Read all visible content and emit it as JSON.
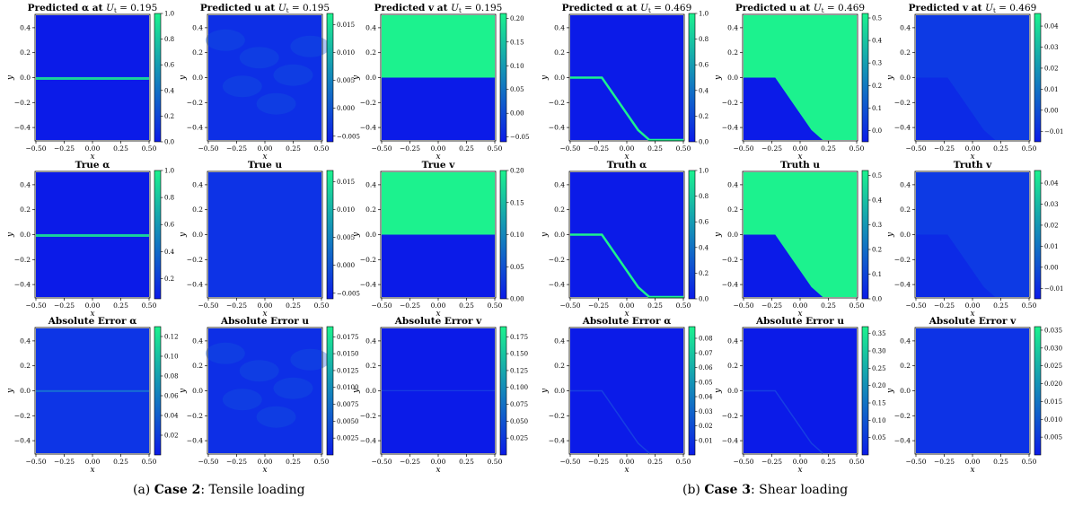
{
  "captions": [
    {
      "label": "(a)",
      "case": "Case 2",
      "text": ": Tensile loading"
    },
    {
      "label": "(b)",
      "case": "Case 3",
      "text": ": Shear loading"
    }
  ],
  "chart_data": [
    {
      "panel": "a",
      "row": 0,
      "col": 0,
      "type": "heatmap",
      "title": "Predicted α at U_t = 0.195",
      "xlabel": "x",
      "ylabel": "y",
      "xlim": [
        -0.5,
        0.5
      ],
      "ylim": [
        -0.5,
        0.5
      ],
      "xticks": [
        "−0.50",
        "−0.25",
        "0.00",
        "0.25",
        "0.50"
      ],
      "yticks": [
        "0.4",
        "0.2",
        "0.0",
        "−0.2",
        "−0.4"
      ],
      "colorbar": {
        "ticks": [
          "1.0",
          "0.8",
          "0.6",
          "0.4",
          "0.2",
          "0.0"
        ],
        "range": [
          0,
          1
        ]
      },
      "field": "tensile_crack_alpha",
      "color_low": "#0b1be8",
      "color_high": "#1cf28e"
    },
    {
      "panel": "a",
      "row": 0,
      "col": 1,
      "type": "heatmap",
      "title": "Predicted u at U_t = 0.195",
      "xlabel": "x",
      "ylabel": "y",
      "xlim": [
        -0.5,
        0.5
      ],
      "ylim": [
        -0.5,
        0.5
      ],
      "xticks": [
        "−0.50",
        "−0.25",
        "0.00",
        "0.25",
        "0.50"
      ],
      "yticks": [
        "0.4",
        "0.2",
        "0.0",
        "−0.2",
        "−0.4"
      ],
      "colorbar": {
        "ticks": [
          "0.015",
          "0.010",
          "0.005",
          "0.000",
          "−0.005"
        ],
        "range": [
          -0.006,
          0.017
        ]
      },
      "field": "noisy_u",
      "color_low": "#0b1be8",
      "color_high": "#1cf28e"
    },
    {
      "panel": "a",
      "row": 0,
      "col": 2,
      "type": "heatmap",
      "title": "Predicted v at U_t = 0.195",
      "xlabel": "x",
      "ylabel": "y",
      "xlim": [
        -0.5,
        0.5
      ],
      "ylim": [
        -0.5,
        0.5
      ],
      "xticks": [
        "−0.50",
        "−0.25",
        "0.00",
        "0.25",
        "0.50"
      ],
      "yticks": [
        "0.4",
        "0.2",
        "0.0",
        "−0.2",
        "−0.4"
      ],
      "colorbar": {
        "ticks": [
          "0.20",
          "0.15",
          "0.10",
          "0.05",
          "0.00",
          "−0.05"
        ],
        "range": [
          -0.06,
          0.21
        ]
      },
      "field": "tensile_split_v",
      "color_low": "#0b1be8",
      "color_high": "#1cf28e"
    },
    {
      "panel": "a",
      "row": 1,
      "col": 0,
      "type": "heatmap",
      "title": "True α",
      "xlabel": "x",
      "ylabel": "y",
      "xlim": [
        -0.5,
        0.5
      ],
      "ylim": [
        -0.5,
        0.5
      ],
      "xticks": [
        "−0.50",
        "−0.25",
        "0.00",
        "0.25",
        "0.50"
      ],
      "yticks": [
        "0.4",
        "0.2",
        "0.0",
        "−0.2",
        "−0.4"
      ],
      "colorbar": {
        "ticks": [
          "1.0",
          "0.8",
          "0.6",
          "0.4",
          "0.2"
        ],
        "range": [
          0.05,
          1
        ]
      },
      "field": "tensile_crack_alpha",
      "color_low": "#0b1be8",
      "color_high": "#1cf28e"
    },
    {
      "panel": "a",
      "row": 1,
      "col": 1,
      "type": "heatmap",
      "title": "True u",
      "xlabel": "x",
      "ylabel": "y",
      "xlim": [
        -0.5,
        0.5
      ],
      "ylim": [
        -0.5,
        0.5
      ],
      "xticks": [
        "−0.50",
        "−0.25",
        "0.00",
        "0.25",
        "0.50"
      ],
      "yticks": [
        "0.4",
        "0.2",
        "0.0",
        "−0.2",
        "−0.4"
      ],
      "colorbar": {
        "ticks": [
          "0.015",
          "0.010",
          "0.005",
          "0.000",
          "−0.005"
        ],
        "range": [
          -0.006,
          0.017
        ]
      },
      "field": "uniform_low",
      "color_low": "#0b1be8",
      "color_high": "#1cf28e"
    },
    {
      "panel": "a",
      "row": 1,
      "col": 2,
      "type": "heatmap",
      "title": "True v",
      "xlabel": "x",
      "ylabel": "y",
      "xlim": [
        -0.5,
        0.5
      ],
      "ylim": [
        -0.5,
        0.5
      ],
      "xticks": [
        "−0.50",
        "−0.25",
        "0.00",
        "0.25",
        "0.50"
      ],
      "yticks": [
        "0.4",
        "0.2",
        "0.0",
        "−0.2",
        "−0.4"
      ],
      "colorbar": {
        "ticks": [
          "0.20",
          "0.15",
          "0.10",
          "0.05",
          "0.00"
        ],
        "range": [
          0,
          0.2
        ]
      },
      "field": "tensile_split_v",
      "color_low": "#0b1be8",
      "color_high": "#1cf28e"
    },
    {
      "panel": "a",
      "row": 2,
      "col": 0,
      "type": "heatmap",
      "title": "Absolute Error α",
      "xlabel": "x",
      "ylabel": "y",
      "xlim": [
        -0.5,
        0.5
      ],
      "ylim": [
        -0.5,
        0.5
      ],
      "xticks": [
        "−0.50",
        "−0.25",
        "0.00",
        "0.25",
        "0.50"
      ],
      "yticks": [
        "0.4",
        "0.2",
        "0.0",
        "−0.2",
        "−0.4"
      ],
      "colorbar": {
        "ticks": [
          "0.12",
          "0.10",
          "0.08",
          "0.06",
          "0.04",
          "0.02"
        ],
        "range": [
          0,
          0.13
        ]
      },
      "field": "error_crack",
      "color_low": "#0b1be8",
      "color_high": "#1cf28e"
    },
    {
      "panel": "a",
      "row": 2,
      "col": 1,
      "type": "heatmap",
      "title": "Absolute Error u",
      "xlabel": "x",
      "ylabel": "y",
      "xlim": [
        -0.5,
        0.5
      ],
      "ylim": [
        -0.5,
        0.5
      ],
      "xticks": [
        "−0.50",
        "−0.25",
        "0.00",
        "0.25",
        "0.50"
      ],
      "yticks": [
        "0.4",
        "0.2",
        "0.0",
        "−0.2",
        "−0.4"
      ],
      "colorbar": {
        "ticks": [
          "0.0175",
          "0.0150",
          "0.0125",
          "0.0100",
          "0.0075",
          "0.0050",
          "0.0025"
        ],
        "range": [
          0,
          0.019
        ]
      },
      "field": "noisy_u",
      "color_low": "#0b1be8",
      "color_high": "#1cf28e"
    },
    {
      "panel": "a",
      "row": 2,
      "col": 2,
      "type": "heatmap",
      "title": "Absolute Error v",
      "xlabel": "x",
      "ylabel": "y",
      "xlim": [
        -0.5,
        0.5
      ],
      "ylim": [
        -0.5,
        0.5
      ],
      "xticks": [
        "−0.50",
        "−0.25",
        "0.00",
        "0.25",
        "0.50"
      ],
      "yticks": [
        "0.4",
        "0.2",
        "0.0",
        "−0.2",
        "−0.4"
      ],
      "colorbar": {
        "ticks": [
          "0.175",
          "0.150",
          "0.125",
          "0.100",
          "0.075",
          "0.050",
          "0.025"
        ],
        "range": [
          0,
          0.19
        ]
      },
      "field": "error_line_faint",
      "color_low": "#0b1be8",
      "color_high": "#1cf28e"
    },
    {
      "panel": "b",
      "row": 0,
      "col": 0,
      "type": "heatmap",
      "title": "Predicted α at U_t = 0.469",
      "xlabel": "x",
      "ylabel": "y",
      "xlim": [
        -0.5,
        0.5
      ],
      "ylim": [
        -0.5,
        0.5
      ],
      "xticks": [
        "−0.50",
        "−0.25",
        "0.00",
        "0.25",
        "0.50"
      ],
      "yticks": [
        "0.4",
        "0.2",
        "0.0",
        "−0.2",
        "−0.4"
      ],
      "colorbar": {
        "ticks": [
          "1.0",
          "0.8",
          "0.6",
          "0.4",
          "0.2",
          "0.0"
        ],
        "range": [
          0,
          1
        ]
      },
      "field": "shear_crack_alpha",
      "color_low": "#0b1be8",
      "color_high": "#1cf28e"
    },
    {
      "panel": "b",
      "row": 0,
      "col": 1,
      "type": "heatmap",
      "title": "Predicted u at U_t = 0.469",
      "xlabel": "x",
      "ylabel": "y",
      "xlim": [
        -0.5,
        0.5
      ],
      "ylim": [
        -0.5,
        0.5
      ],
      "xticks": [
        "−0.50",
        "−0.25",
        "0.00",
        "0.25",
        "0.50"
      ],
      "yticks": [
        "0.4",
        "0.2",
        "0.0",
        "−0.2",
        "−0.4"
      ],
      "colorbar": {
        "ticks": [
          "0.5",
          "0.4",
          "0.3",
          "0.2",
          "0.1",
          "0.0"
        ],
        "range": [
          -0.05,
          0.52
        ]
      },
      "field": "shear_split_u",
      "color_low": "#0b1be8",
      "color_high": "#1cf28e"
    },
    {
      "panel": "b",
      "row": 0,
      "col": 2,
      "type": "heatmap",
      "title": "Predicted v at U_t = 0.469",
      "xlabel": "x",
      "ylabel": "y",
      "xlim": [
        -0.5,
        0.5
      ],
      "ylim": [
        -0.5,
        0.5
      ],
      "xticks": [
        "−0.50",
        "−0.25",
        "0.00",
        "0.25",
        "0.50"
      ],
      "yticks": [
        "0.4",
        "0.2",
        "0.0",
        "−0.2",
        "−0.4"
      ],
      "colorbar": {
        "ticks": [
          "0.04",
          "0.03",
          "0.02",
          "0.01",
          "0.00",
          "−0.01"
        ],
        "range": [
          -0.015,
          0.046
        ]
      },
      "field": "shear_faint_v",
      "color_low": "#0b1be8",
      "color_high": "#1cf28e"
    },
    {
      "panel": "b",
      "row": 1,
      "col": 0,
      "type": "heatmap",
      "title": "Truth α",
      "xlabel": "x",
      "ylabel": "y",
      "xlim": [
        -0.5,
        0.5
      ],
      "ylim": [
        -0.5,
        0.5
      ],
      "xticks": [
        "−0.50",
        "−0.25",
        "0.00",
        "0.25",
        "0.50"
      ],
      "yticks": [
        "0.4",
        "0.2",
        "0.0",
        "−0.2",
        "−0.4"
      ],
      "colorbar": {
        "ticks": [
          "1.0",
          "0.8",
          "0.6",
          "0.4",
          "0.2",
          "0.0"
        ],
        "range": [
          0,
          1
        ]
      },
      "field": "shear_crack_alpha",
      "color_low": "#0b1be8",
      "color_high": "#1cf28e"
    },
    {
      "panel": "b",
      "row": 1,
      "col": 1,
      "type": "heatmap",
      "title": "Truth u",
      "xlabel": "x",
      "ylabel": "y",
      "xlim": [
        -0.5,
        0.5
      ],
      "ylim": [
        -0.5,
        0.5
      ],
      "xticks": [
        "−0.50",
        "−0.25",
        "0.00",
        "0.25",
        "0.50"
      ],
      "yticks": [
        "0.4",
        "0.2",
        "0.0",
        "−0.2",
        "−0.4"
      ],
      "colorbar": {
        "ticks": [
          "0.5",
          "0.4",
          "0.3",
          "0.2",
          "0.1",
          "0.0"
        ],
        "range": [
          0,
          0.52
        ]
      },
      "field": "shear_split_u",
      "color_low": "#0b1be8",
      "color_high": "#1cf28e"
    },
    {
      "panel": "b",
      "row": 1,
      "col": 2,
      "type": "heatmap",
      "title": "Truth v",
      "xlabel": "x",
      "ylabel": "y",
      "xlim": [
        -0.5,
        0.5
      ],
      "ylim": [
        -0.5,
        0.5
      ],
      "xticks": [
        "−0.50",
        "−0.25",
        "0.00",
        "0.25",
        "0.50"
      ],
      "yticks": [
        "0.4",
        "0.2",
        "0.0",
        "−0.2",
        "−0.4"
      ],
      "colorbar": {
        "ticks": [
          "0.04",
          "0.03",
          "0.02",
          "0.01",
          "0.00",
          "−0.01"
        ],
        "range": [
          -0.015,
          0.046
        ]
      },
      "field": "shear_faint_v",
      "color_low": "#0b1be8",
      "color_high": "#1cf28e"
    },
    {
      "panel": "b",
      "row": 2,
      "col": 0,
      "type": "heatmap",
      "title": "Absolute Error α",
      "xlabel": "x",
      "ylabel": "y",
      "xlim": [
        -0.5,
        0.5
      ],
      "ylim": [
        -0.5,
        0.5
      ],
      "xticks": [
        "−0.50",
        "−0.25",
        "0.00",
        "0.25",
        "0.50"
      ],
      "yticks": [
        "0.4",
        "0.2",
        "0.0",
        "−0.2",
        "−0.4"
      ],
      "colorbar": {
        "ticks": [
          "0.08",
          "0.07",
          "0.06",
          "0.05",
          "0.04",
          "0.03",
          "0.02",
          "0.01"
        ],
        "range": [
          0,
          0.088
        ]
      },
      "field": "error_shear_faint",
      "color_low": "#0b1be8",
      "color_high": "#1cf28e"
    },
    {
      "panel": "b",
      "row": 2,
      "col": 1,
      "type": "heatmap",
      "title": "Absolute Error u",
      "xlabel": "x",
      "ylabel": "y",
      "xlim": [
        -0.5,
        0.5
      ],
      "ylim": [
        -0.5,
        0.5
      ],
      "xticks": [
        "−0.50",
        "−0.25",
        "0.00",
        "0.25",
        "0.50"
      ],
      "yticks": [
        "0.4",
        "0.2",
        "0.0",
        "−0.2",
        "−0.4"
      ],
      "colorbar": {
        "ticks": [
          "0.35",
          "0.30",
          "0.25",
          "0.20",
          "0.15",
          "0.10",
          "0.05"
        ],
        "range": [
          0,
          0.37
        ]
      },
      "field": "error_shear_faint",
      "color_low": "#0b1be8",
      "color_high": "#1cf28e"
    },
    {
      "panel": "b",
      "row": 2,
      "col": 2,
      "type": "heatmap",
      "title": "Absolute Error v",
      "xlabel": "x",
      "ylabel": "y",
      "xlim": [
        -0.5,
        0.5
      ],
      "ylim": [
        -0.5,
        0.5
      ],
      "xticks": [
        "−0.50",
        "−0.25",
        "0.00",
        "0.25",
        "0.50"
      ],
      "yticks": [
        "0.4",
        "0.2",
        "0.0",
        "−0.2",
        "−0.4"
      ],
      "colorbar": {
        "ticks": [
          "0.035",
          "0.030",
          "0.025",
          "0.020",
          "0.015",
          "0.010",
          "0.005"
        ],
        "range": [
          0,
          0.036
        ]
      },
      "field": "uniform_low",
      "color_low": "#0b1be8",
      "color_high": "#1cf28e"
    }
  ]
}
